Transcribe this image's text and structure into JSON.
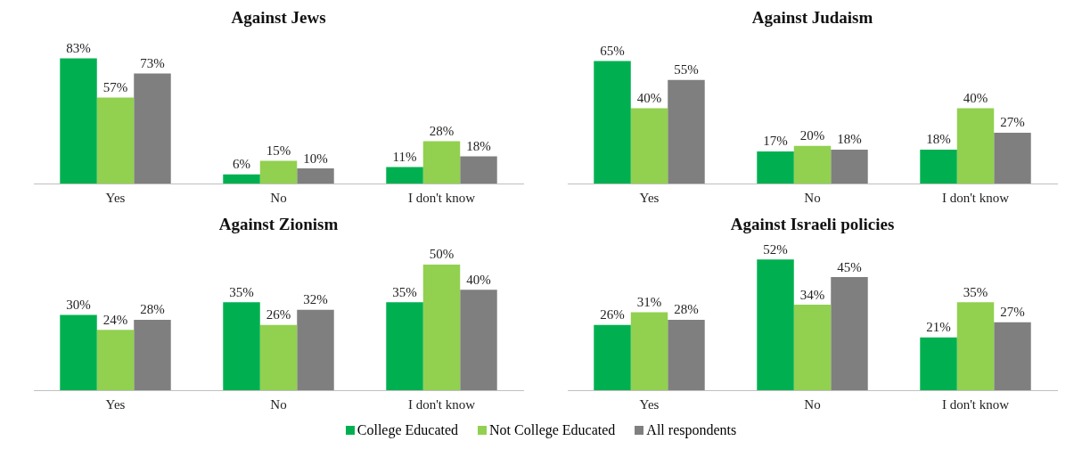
{
  "chart_data": [
    {
      "type": "bar",
      "title": "Against Jews",
      "categories": [
        "Yes",
        "No",
        "I don't know"
      ],
      "grid": false,
      "legend": false,
      "series": [
        {
          "color": "#00b050",
          "values": [
            83,
            6,
            11
          ],
          "value_labels": [
            "83%",
            "6%",
            "11%"
          ]
        },
        {
          "color": "#92d050",
          "values": [
            57,
            15,
            28
          ],
          "value_labels": [
            "57%",
            "15%",
            "28%"
          ]
        },
        {
          "color": "#7f7f7f",
          "values": [
            73,
            10,
            18
          ],
          "value_labels": [
            "73%",
            "10%",
            "18%"
          ]
        }
      ]
    },
    {
      "type": "bar",
      "title": "Against Judaism",
      "categories": [
        "Yes",
        "No",
        "I don't know"
      ],
      "grid": false,
      "legend": false,
      "series": [
        {
          "color": "#00b050",
          "values": [
            65,
            17,
            18
          ],
          "value_labels": [
            "65%",
            "17%",
            "18%"
          ]
        },
        {
          "color": "#92d050",
          "values": [
            40,
            20,
            40
          ],
          "value_labels": [
            "40%",
            "20%",
            "40%"
          ]
        },
        {
          "color": "#7f7f7f",
          "values": [
            55,
            18,
            27
          ],
          "value_labels": [
            "55%",
            "18%",
            "27%"
          ]
        }
      ]
    },
    {
      "type": "bar",
      "title": "Against Zionism",
      "categories": [
        "Yes",
        "No",
        "I don't know"
      ],
      "grid": false,
      "legend": false,
      "series": [
        {
          "color": "#00b050",
          "values": [
            30,
            35,
            35
          ],
          "value_labels": [
            "30%",
            "35%",
            "35%"
          ]
        },
        {
          "color": "#92d050",
          "values": [
            24,
            26,
            50
          ],
          "value_labels": [
            "24%",
            "26%",
            "50%"
          ]
        },
        {
          "color": "#7f7f7f",
          "values": [
            28,
            32,
            40
          ],
          "value_labels": [
            "28%",
            "32%",
            "40%"
          ]
        }
      ]
    },
    {
      "type": "bar",
      "title": "Against Israeli policies",
      "categories": [
        "Yes",
        "No",
        "I don't know"
      ],
      "grid": false,
      "legend": "bottom",
      "series": [
        {
          "name": "College Educated",
          "color": "#00b050",
          "values": [
            26,
            52,
            21
          ],
          "value_labels": [
            "26%",
            "52%",
            "21%"
          ]
        },
        {
          "name": "Not College Educated",
          "color": "#92d050",
          "values": [
            31,
            34,
            35
          ],
          "value_labels": [
            "31%",
            "34%",
            "35%"
          ]
        },
        {
          "name": "All respondents",
          "color": "#7f7f7f",
          "values": [
            28,
            45,
            27
          ],
          "value_labels": [
            "28%",
            "45%",
            "27%"
          ]
        }
      ]
    }
  ]
}
